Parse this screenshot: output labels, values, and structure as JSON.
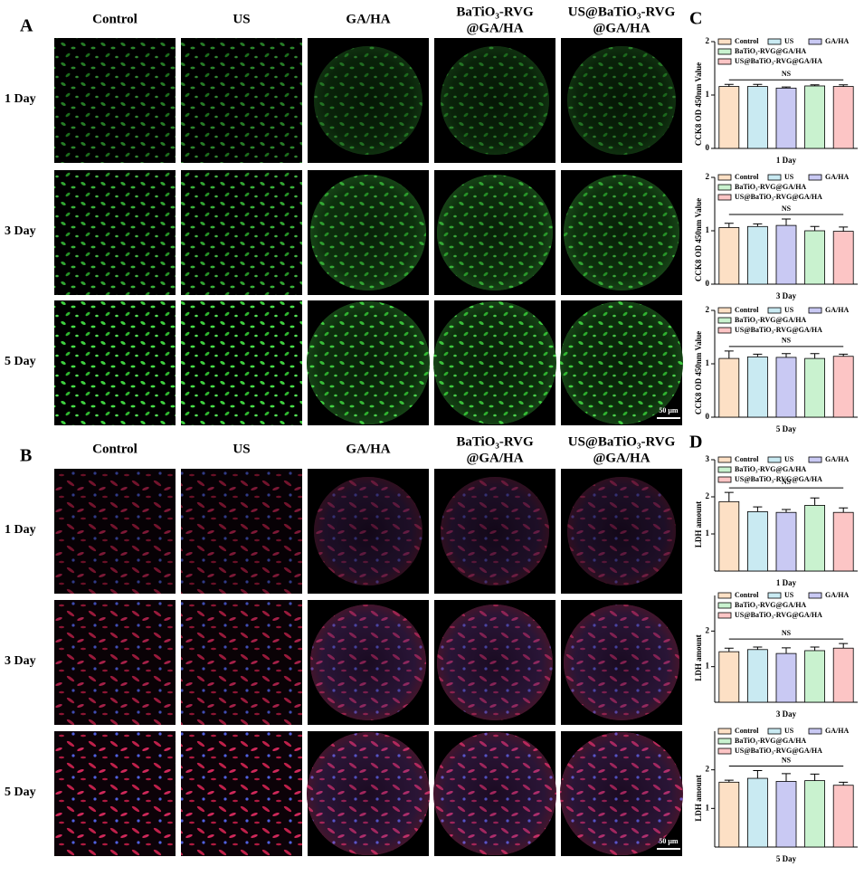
{
  "panel_labels": [
    "A",
    "B",
    "C",
    "D"
  ],
  "columns": [
    [
      "Control"
    ],
    [
      "US"
    ],
    [
      "GA/HA"
    ],
    [
      "BaTiO₃-RVG",
      "@GA/HA"
    ],
    [
      "US@BaTiO₃-RVG",
      "@GA/HA"
    ]
  ],
  "rows": [
    "1 Day",
    "3 Day",
    "5 Day"
  ],
  "scale_bar": "50 μm",
  "chart_data": [
    {
      "type": "bar",
      "ylabel": "CCK8 OD 450nm Value",
      "xlabel": "1 Day",
      "annotation": "NS",
      "categories": [
        "Control",
        "US",
        "GA/HA",
        "BaTiO₃-RVG@GA/HA",
        "US@BaTiO₃-RVG@GA/HA"
      ],
      "colors": [
        "#fde0c5",
        "#c9eaf2",
        "#c9c9f3",
        "#c9f2cf",
        "#fcc5c5"
      ],
      "values": [
        1.16,
        1.16,
        1.13,
        1.17,
        1.16
      ],
      "errors": [
        0.04,
        0.04,
        0.02,
        0.02,
        0.03
      ],
      "ylim": [
        0,
        2
      ],
      "yticks": [
        0,
        1,
        2
      ]
    },
    {
      "type": "bar",
      "ylabel": "CCK8 OD 450nm Value",
      "xlabel": "3 Day",
      "annotation": "NS",
      "categories": [
        "Control",
        "US",
        "GA/HA",
        "BaTiO₃-RVG@GA/HA",
        "US@BaTiO₃-RVG@GA/HA"
      ],
      "colors": [
        "#fde0c5",
        "#c9eaf2",
        "#c9c9f3",
        "#c9f2cf",
        "#fcc5c5"
      ],
      "values": [
        1.06,
        1.08,
        1.1,
        1.0,
        0.99
      ],
      "errors": [
        0.08,
        0.05,
        0.12,
        0.08,
        0.08
      ],
      "ylim": [
        0,
        2
      ],
      "yticks": [
        0,
        1,
        2
      ]
    },
    {
      "type": "bar",
      "ylabel": "CCK8 OD 450nm Value",
      "xlabel": "5 Day",
      "annotation": "NS",
      "categories": [
        "Control",
        "US",
        "GA/HA",
        "BaTiO₃-RVG@GA/HA",
        "US@BaTiO₃-RVG@GA/HA"
      ],
      "colors": [
        "#fde0c5",
        "#c9eaf2",
        "#c9c9f3",
        "#c9f2cf",
        "#fcc5c5"
      ],
      "values": [
        1.1,
        1.13,
        1.12,
        1.1,
        1.14
      ],
      "errors": [
        0.14,
        0.05,
        0.07,
        0.09,
        0.04
      ],
      "ylim": [
        0,
        2
      ],
      "yticks": [
        0,
        1,
        2
      ]
    },
    {
      "type": "bar",
      "ylabel": "LDH amount",
      "xlabel": "1 Day",
      "annotation": "NS",
      "categories": [
        "Control",
        "US",
        "GA/HA",
        "BaTiO₃-RVG@GA/HA",
        "US@BaTiO₃-RVG@GA/HA"
      ],
      "colors": [
        "#fde0c5",
        "#c9eaf2",
        "#c9c9f3",
        "#c9f2cf",
        "#fcc5c5"
      ],
      "values": [
        1.87,
        1.6,
        1.58,
        1.77,
        1.58
      ],
      "errors": [
        0.25,
        0.13,
        0.08,
        0.2,
        0.12
      ],
      "ylim": [
        0,
        3
      ],
      "yticks": [
        1,
        2,
        3
      ]
    },
    {
      "type": "bar",
      "ylabel": "LDH amount",
      "xlabel": "3 Day",
      "annotation": "NS",
      "categories": [
        "Control",
        "US",
        "GA/HA",
        "BaTiO₃-RVG@GA/HA",
        "US@BaTiO₃-RVG@GA/HA"
      ],
      "colors": [
        "#fde0c5",
        "#c9eaf2",
        "#c9c9f3",
        "#c9f2cf",
        "#fcc5c5"
      ],
      "values": [
        1.42,
        1.48,
        1.37,
        1.45,
        1.52
      ],
      "errors": [
        0.1,
        0.07,
        0.16,
        0.1,
        0.13
      ],
      "ylim": [
        0,
        3
      ],
      "yticks": [
        1,
        2
      ]
    },
    {
      "type": "bar",
      "ylabel": "LDH amount",
      "xlabel": "5 Day",
      "annotation": "NS",
      "categories": [
        "Control",
        "US",
        "GA/HA",
        "BaTiO₃-RVG@GA/HA",
        "US@BaTiO₃-RVG@GA/HA"
      ],
      "colors": [
        "#fde0c5",
        "#c9eaf2",
        "#c9c9f3",
        "#c9f2cf",
        "#fcc5c5"
      ],
      "values": [
        1.68,
        1.78,
        1.7,
        1.72,
        1.6
      ],
      "errors": [
        0.05,
        0.2,
        0.2,
        0.17,
        0.08
      ],
      "ylim": [
        0,
        3
      ],
      "yticks": [
        1,
        2
      ]
    }
  ]
}
